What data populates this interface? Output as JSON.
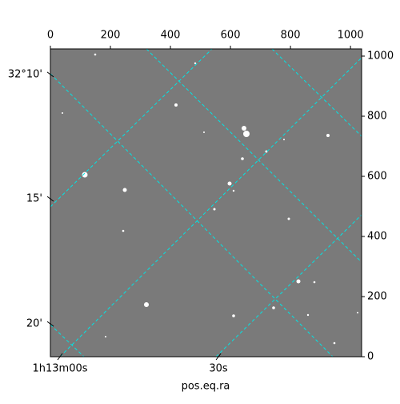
{
  "chart_data": {
    "type": "image",
    "xlabel": "pos.eq.ra",
    "xlim": [
      0,
      1037
    ],
    "xticks": [
      0,
      200,
      400,
      600,
      800,
      1000
    ],
    "ylim": [
      0,
      1024
    ],
    "yticks": [
      0,
      200,
      400,
      600,
      800,
      1000
    ],
    "ra_ticks": [
      {
        "value": 32,
        "label": "1h13m00s"
      },
      {
        "value": 560,
        "label": "30s"
      }
    ],
    "dec_ticks": [
      {
        "value": 939,
        "label": "32°10'"
      },
      {
        "value": 525,
        "label": "15'"
      },
      {
        "value": 109,
        "label": "20'"
      }
    ]
  }
}
